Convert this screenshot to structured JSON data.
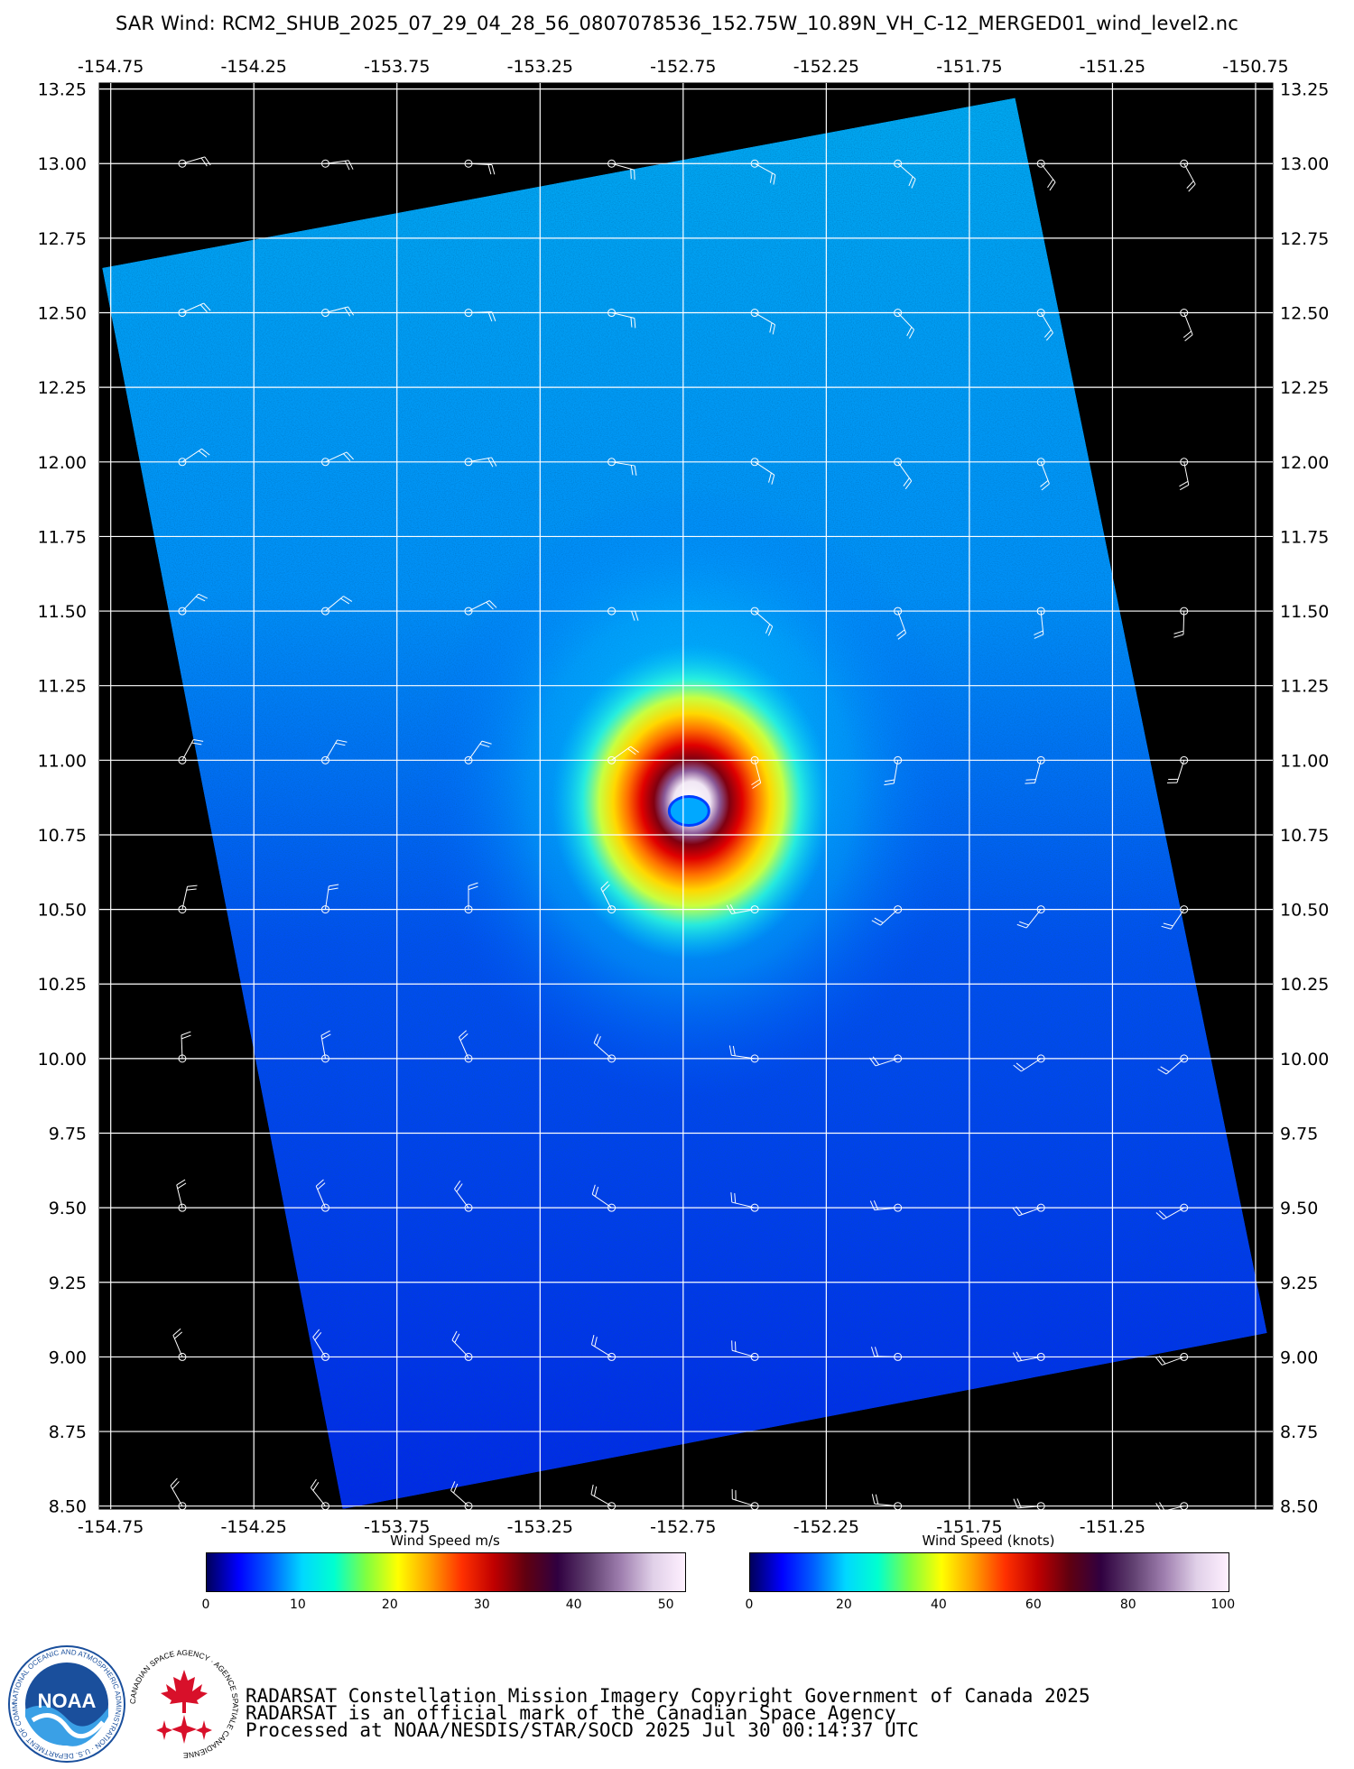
{
  "title": "SAR Wind: RCM2_SHUB_2025_07_29_04_28_56_0807078536_152.75W_10.89N_VH_C-12_MERGED01_wind_level2.nc",
  "map": {
    "lon_range": [
      -154.79,
      -150.69
    ],
    "lat_range": [
      8.49,
      13.27
    ],
    "lon_tick_labels_top": [
      "-154.75",
      "-154.25",
      "-153.75",
      "-153.25",
      "-152.75",
      "-152.25",
      "-151.75",
      "-151.25",
      "-150.75"
    ],
    "lon_tick_labels_bottom": [
      "-154.75",
      "-154.25",
      "-153.75",
      "-153.25",
      "-152.75",
      "-152.25",
      "-151.75",
      "-151.25"
    ],
    "lat_tick_labels": [
      "13.25",
      "13.00",
      "12.75",
      "12.50",
      "12.25",
      "12.00",
      "11.75",
      "11.50",
      "11.25",
      "11.00",
      "10.75",
      "10.50",
      "10.25",
      "10.00",
      "9.75",
      "9.50",
      "9.25",
      "9.00",
      "8.75",
      "8.50"
    ],
    "swath_corners": [
      [
        -154.78,
        12.65
      ],
      [
        -151.59,
        13.22
      ],
      [
        -150.71,
        9.08
      ],
      [
        -153.94,
        8.49
      ]
    ],
    "storm_center": {
      "lon": -152.72,
      "lat": 10.83
    },
    "barb_lons": [
      -154.5,
      -154.0,
      -153.5,
      -153.0,
      -152.5,
      -152.0,
      -151.5,
      -151.0
    ],
    "barb_lats": [
      13.0,
      12.5,
      12.0,
      11.5,
      11.0,
      10.5,
      10.0,
      9.5,
      9.0,
      8.5
    ],
    "background_color": "#000000",
    "grid_color": "#ffffff"
  },
  "colorbars": [
    {
      "title": "Wind Speed m/s",
      "ticks": [
        "0",
        "10",
        "20",
        "30",
        "40",
        "50"
      ],
      "max": 52
    },
    {
      "title": "Wind Speed (knots)",
      "ticks": [
        "0",
        "20",
        "40",
        "60",
        "80",
        "100"
      ],
      "max": 101
    }
  ],
  "colormap": [
    "#00005a",
    "#0000ff",
    "#0060ff",
    "#00d8ff",
    "#00ffd0",
    "#80ff40",
    "#ffff00",
    "#ffa000",
    "#ff3000",
    "#c00000",
    "#600010",
    "#300040",
    "#604070",
    "#a080b0",
    "#e0d0e8",
    "#fff0ff"
  ],
  "credits": [
    "RADARSAT Constellation Mission Imagery Copyright Government of Canada 2025",
    "RADARSAT is an official mark of the Canadian Space Agency",
    "Processed at NOAA/NESDIS/STAR/SOCD 2025 Jul 30 00:14:37 UTC"
  ],
  "logos": {
    "noaa": {
      "name": "NOAA",
      "ring_text": "NATIONAL OCEANIC AND ATMOSPHERIC ADMINISTRATION · U.S. DEPARTMENT OF COMMERCE",
      "color": "#1a4f9c"
    },
    "csa": {
      "ring_text": "CANADIAN SPACE AGENCY · AGENCE SPATIALE CANADIENNE",
      "color": "#d8102a"
    }
  }
}
